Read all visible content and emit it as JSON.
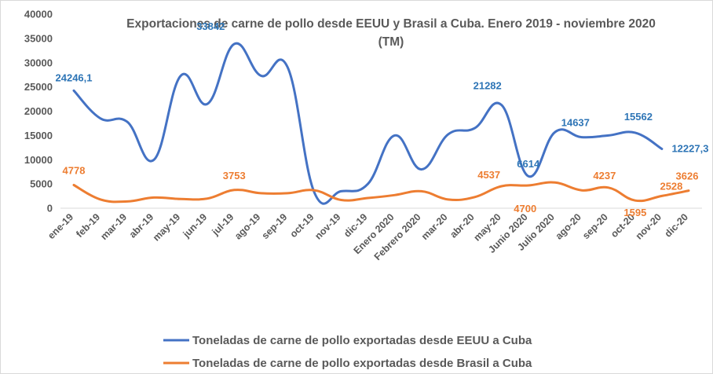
{
  "chart_data": {
    "type": "line",
    "title_line1": "Exportaciones de carne de pollo desde EEUU y Brasil a Cuba. Enero 2019 - noviembre 2020",
    "title_line2": "(TM)",
    "categories": [
      "ene-19",
      "feb-19",
      "mar-19",
      "abr-19",
      "may-19",
      "jun-19",
      "jul-19",
      "ago-19",
      "sep-19",
      "oct-19",
      "nov-19",
      "dic-19",
      "Enero 2020",
      "Febrero 2020",
      "mar-20",
      "abr-20",
      "may-20",
      "Junio 2020",
      "Julio 2020",
      "ago-20",
      "sep-20",
      "oct-20",
      "nov-20",
      "dic-20"
    ],
    "yticks": [
      "0",
      "5000",
      "10000",
      "15000",
      "20000",
      "25000",
      "30000",
      "35000",
      "40000"
    ],
    "ylim": [
      0,
      40000
    ],
    "series": [
      {
        "name": "Toneladas de carne de pollo exportadas desde EEUU a Cuba",
        "color": "#4472c4",
        "values": [
          24246.1,
          18500,
          17800,
          10000,
          27300,
          21500,
          33842,
          27300,
          29000,
          3200,
          3500,
          5000,
          15000,
          8000,
          15200,
          16500,
          21282,
          6614,
          15700,
          14637,
          15000,
          15562,
          12227.3,
          null
        ],
        "labels": [
          {
            "i": 0,
            "text": "24246,1"
          },
          {
            "i": 6,
            "text": "33842"
          },
          {
            "i": 16,
            "text": "21282"
          },
          {
            "i": 17,
            "text": "6614"
          },
          {
            "i": 19,
            "text": "14637"
          },
          {
            "i": 21,
            "text": "15562"
          },
          {
            "i": 22,
            "text": "12227,3"
          }
        ]
      },
      {
        "name": "Toneladas de carne de pollo exportadas desde Brasil a Cuba",
        "color": "#ed7d31",
        "values": [
          4778,
          1800,
          1400,
          2200,
          1900,
          2000,
          3753,
          3100,
          3100,
          3700,
          1700,
          2100,
          2700,
          3500,
          1800,
          2300,
          4537,
          4700,
          5300,
          3700,
          4237,
          1595,
          2528,
          3626
        ],
        "labels": [
          {
            "i": 0,
            "text": "4778"
          },
          {
            "i": 6,
            "text": "3753"
          },
          {
            "i": 16,
            "text": "4537"
          },
          {
            "i": 17,
            "text": "4700"
          },
          {
            "i": 20,
            "text": "4237"
          },
          {
            "i": 21,
            "text": "1595"
          },
          {
            "i": 22,
            "text": "2528"
          },
          {
            "i": 23,
            "text": "3626"
          }
        ]
      }
    ],
    "legend_position": "bottom"
  }
}
